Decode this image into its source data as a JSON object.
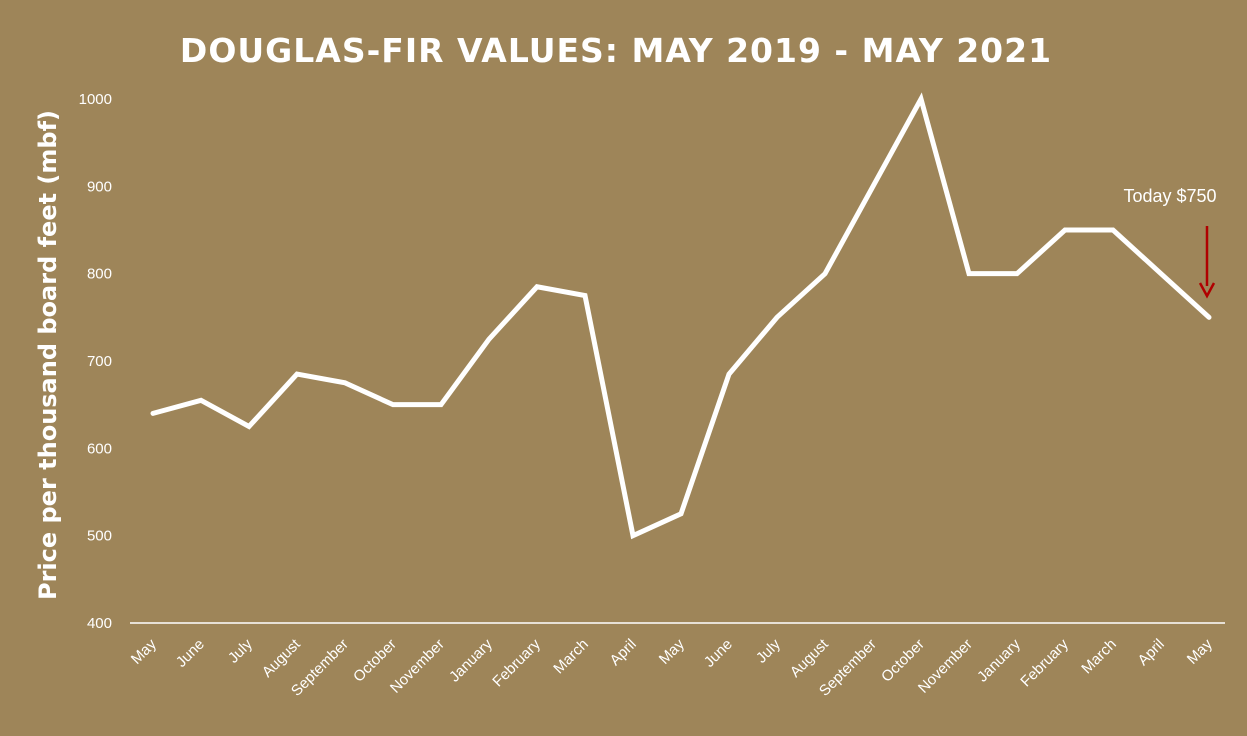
{
  "chart_data": {
    "type": "line",
    "title": "DOUGLAS-FIR VALUES: MAY 2019 - MAY 2021",
    "ylabel": "Price per thousand board feet (mbf)",
    "xlabel": "",
    "ylim": [
      400,
      1000
    ],
    "yticks": [
      400,
      500,
      600,
      700,
      800,
      900,
      1000
    ],
    "grid": false,
    "legend": "none",
    "drop_lines": true,
    "categories": [
      "May",
      "June",
      "July",
      "August",
      "September",
      "October",
      "November",
      "January",
      "February",
      "March",
      "April",
      "May",
      "June",
      "July",
      "August",
      "September",
      "October",
      "November",
      "January",
      "February",
      "March",
      "April",
      "May"
    ],
    "series": [
      {
        "values": [
          640,
          655,
          625,
          685,
          675,
          650,
          650,
          725,
          785,
          775,
          500,
          525,
          685,
          750,
          800,
          900,
          1000,
          800,
          800,
          850,
          850,
          800,
          750
        ]
      }
    ],
    "annotation": {
      "text": "Today $750",
      "index": 22,
      "arrow_color": "#b00000"
    },
    "colors": {
      "background": "#9e8559",
      "line": "#ffffff",
      "axis": "#ffffff"
    }
  }
}
